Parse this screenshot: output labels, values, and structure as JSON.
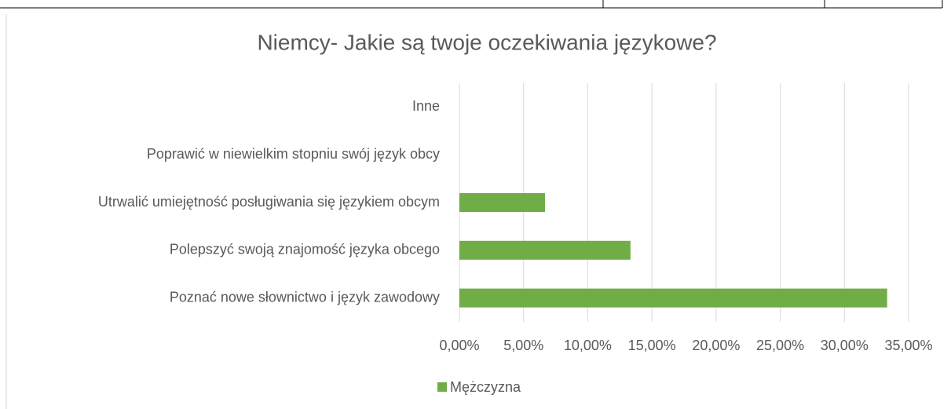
{
  "chart_data": {
    "type": "hbar",
    "title": "Niemcy- Jakie są twoje oczekiwania językowe?",
    "categories": [
      "Poznać nowe słownictwo i język zawodowy",
      "Polepszyć swoją znajomość języka obcego",
      "Utrwalić umiejętność posługiwania się językiem obcym",
      "Poprawić w niewielkim stopniu swój język obcy",
      "Inne"
    ],
    "series": [
      {
        "name": "Mężczyzna",
        "color": "#70ad47",
        "values": [
          33.33,
          13.33,
          6.67,
          0,
          0
        ]
      }
    ],
    "xlim": [
      0,
      35
    ],
    "xticks": [
      {
        "value": 0,
        "label": "0,00%"
      },
      {
        "value": 5,
        "label": "5,00%"
      },
      {
        "value": 10,
        "label": "10,00%"
      },
      {
        "value": 15,
        "label": "15,00%"
      },
      {
        "value": 20,
        "label": "20,00%"
      },
      {
        "value": 25,
        "label": "25,00%"
      },
      {
        "value": 30,
        "label": "30,00%"
      },
      {
        "value": 35,
        "label": "35,00%"
      }
    ],
    "grid": true,
    "legend": "bottom"
  }
}
